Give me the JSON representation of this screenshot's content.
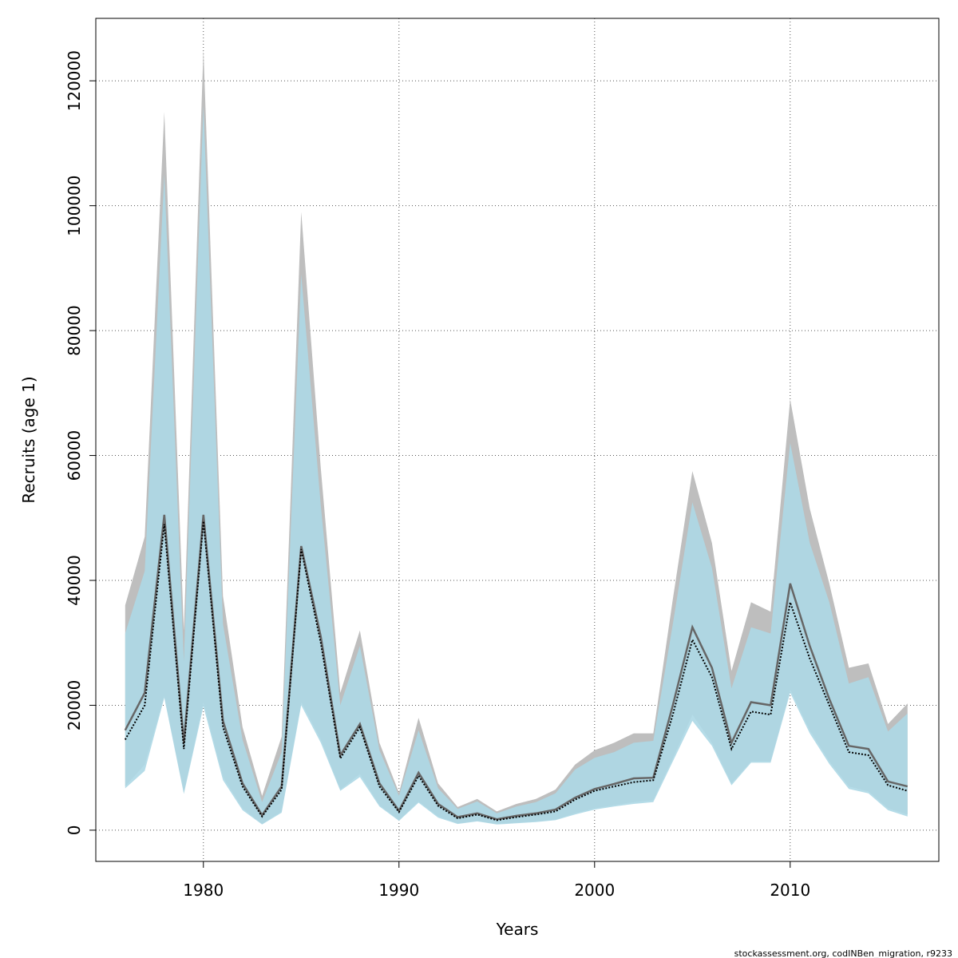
{
  "chart_data": {
    "type": "area",
    "xlabel": "Years",
    "ylabel": "Recruits (age 1)",
    "xlim": [
      1974.5,
      2017.6
    ],
    "ylim": [
      -5000,
      130000
    ],
    "x_ticks": [
      1980,
      1990,
      2000,
      2010
    ],
    "y_ticks": [
      0,
      20000,
      40000,
      60000,
      80000,
      100000,
      120000
    ],
    "grid": true,
    "x": [
      1976,
      1977,
      1978,
      1979,
      1980,
      1981,
      1982,
      1983,
      1984,
      1985,
      1986,
      1987,
      1988,
      1989,
      1990,
      1991,
      1992,
      1993,
      1994,
      1995,
      1996,
      1997,
      1998,
      1999,
      2000,
      2001,
      2002,
      2003,
      2004,
      2005,
      2006,
      2007,
      2008,
      2009,
      2010,
      2011,
      2012,
      2013,
      2014,
      2015,
      2016
    ],
    "series": [
      {
        "role": "band-grey",
        "color": "#bebebe",
        "lower": [
          7000,
          10500,
          21500,
          6000,
          20500,
          8500,
          3500,
          1000,
          3000,
          20500,
          14500,
          6500,
          9000,
          4000,
          1600,
          4600,
          2200,
          1100,
          1500,
          1000,
          1200,
          1400,
          1700,
          2700,
          3500,
          4000,
          4500,
          4800,
          11500,
          18500,
          14000,
          7500,
          11000,
          11000,
          22500,
          16000,
          11000,
          7000,
          6200,
          3500,
          2500
        ],
        "upper": [
          36000,
          47000,
          115000,
          32000,
          125000,
          37500,
          16500,
          5500,
          15000,
          99000,
          58000,
          22000,
          32000,
          14000,
          6000,
          18000,
          7500,
          3700,
          5000,
          3000,
          4200,
          5000,
          6500,
          10500,
          12800,
          14000,
          15500,
          15500,
          37000,
          57500,
          46000,
          25500,
          36500,
          35000,
          69000,
          51500,
          39500,
          26000,
          26700,
          17000,
          20300
        ]
      },
      {
        "role": "band-blue",
        "color": "#add8e6",
        "lower": [
          6700,
          9500,
          21200,
          5800,
          19800,
          8000,
          3200,
          900,
          2800,
          20000,
          14000,
          6300,
          8500,
          3800,
          1500,
          4400,
          2000,
          1000,
          1400,
          900,
          1100,
          1300,
          1600,
          2500,
          3300,
          3800,
          4200,
          4500,
          11000,
          17500,
          13500,
          7200,
          10800,
          10800,
          22000,
          15500,
          10600,
          6600,
          5900,
          3200,
          2200
        ],
        "upper": [
          31500,
          41500,
          105000,
          27000,
          116000,
          33000,
          14500,
          4500,
          12500,
          89000,
          52000,
          20000,
          29500,
          12800,
          5500,
          16000,
          6700,
          3400,
          4600,
          2700,
          3800,
          4500,
          5900,
          9700,
          11600,
          12500,
          14000,
          14300,
          33000,
          52500,
          42000,
          22700,
          32500,
          31500,
          62000,
          46000,
          36500,
          23500,
          24500,
          15800,
          18700
        ]
      },
      {
        "role": "grey-center",
        "color": "#666666",
        "values": [
          16000,
          22000,
          50500,
          14000,
          50500,
          17500,
          7500,
          2400,
          7000,
          45500,
          31000,
          12000,
          17000,
          7500,
          3100,
          9200,
          4200,
          2100,
          2700,
          1750,
          2300,
          2700,
          3300,
          5200,
          6600,
          7400,
          8300,
          8400,
          20000,
          32500,
          26000,
          14000,
          20500,
          20000,
          39500,
          29500,
          21000,
          13500,
          13000,
          7800,
          7000
        ]
      },
      {
        "role": "blue-center",
        "color": "#000000",
        "values": [
          14500,
          20000,
          49000,
          13000,
          49500,
          16500,
          7000,
          2200,
          6500,
          45000,
          30000,
          11500,
          16500,
          7000,
          2900,
          8700,
          3900,
          1900,
          2500,
          1600,
          2100,
          2500,
          3000,
          4900,
          6300,
          7000,
          7700,
          8000,
          18500,
          30500,
          24500,
          13000,
          19000,
          18500,
          36500,
          27500,
          20000,
          12500,
          12000,
          7200,
          6300
        ]
      }
    ]
  },
  "footer": {
    "source_note": "stockassessment.org, codINBen_migration, r9233"
  }
}
